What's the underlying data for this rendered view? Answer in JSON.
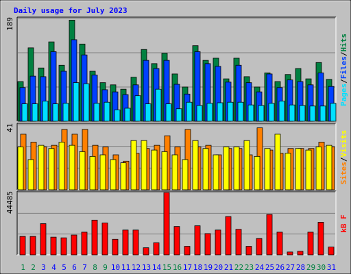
{
  "title": "Daily usage for July 2023",
  "categories": [
    "1",
    "2",
    "3",
    "4",
    "5",
    "6",
    "7",
    "8",
    "9",
    "10",
    "11",
    "12",
    "13",
    "14",
    "15",
    "16",
    "17",
    "18",
    "19",
    "20",
    "21",
    "22",
    "23",
    "24",
    "25",
    "26",
    "27",
    "28",
    "29",
    "30",
    "31"
  ],
  "category_colors": [
    "#008040",
    "#008040",
    "#0000ff",
    "#0000ff",
    "#0000ff",
    "#0000ff",
    "#0000ff",
    "#008040",
    "#008040",
    "#0000ff",
    "#0000ff",
    "#0000ff",
    "#0000ff",
    "#0000ff",
    "#008040",
    "#008040",
    "#0000ff",
    "#0000ff",
    "#0000ff",
    "#0000ff",
    "#0000ff",
    "#008040",
    "#008040",
    "#0000ff",
    "#0000ff",
    "#0000ff",
    "#0000ff",
    "#0000ff",
    "#008040",
    "#008040",
    "#0000ff"
  ],
  "chart_data": [
    {
      "type": "bar",
      "ylim": [
        0,
        189
      ],
      "yticks": [
        189
      ],
      "grid_divisions": 3,
      "separator": "/",
      "series": [
        {
          "name": "Hits",
          "color": "#008040",
          "values": [
            73,
            135,
            98,
            146,
            103,
            186,
            142,
            92,
            71,
            67,
            59,
            81,
            132,
            106,
            125,
            87,
            63,
            139,
            112,
            116,
            78,
            116,
            82,
            63,
            89,
            73,
            86,
            97,
            78,
            108,
            77
          ]
        },
        {
          "name": "Files",
          "color": "#0040ff",
          "values": [
            62,
            83,
            82,
            128,
            92,
            150,
            122,
            85,
            58,
            54,
            49,
            67,
            112,
            97,
            112,
            68,
            50,
            128,
            106,
            101,
            72,
            103,
            71,
            54,
            87,
            62,
            76,
            73,
            67,
            89,
            64
          ]
        },
        {
          "name": "Pages",
          "color": "#00e0ff",
          "values": [
            32,
            32,
            37,
            32,
            33,
            71,
            69,
            33,
            35,
            21,
            24,
            47,
            32,
            59,
            32,
            23,
            35,
            29,
            33,
            34,
            35,
            35,
            30,
            29,
            33,
            37,
            30,
            29,
            28,
            28,
            33
          ]
        }
      ]
    },
    {
      "type": "bar",
      "ylim": [
        0,
        41
      ],
      "yticks": [
        41
      ],
      "grid_divisions": 3,
      "separator": "/",
      "series": [
        {
          "name": "Sites",
          "color": "#ff8000",
          "values": [
            35,
            30,
            27,
            28,
            38,
            35,
            38,
            28,
            27,
            22,
            18,
            23,
            26,
            28,
            34,
            27,
            38,
            27,
            28,
            22,
            26,
            26,
            22,
            39,
            25,
            23,
            26,
            26,
            26,
            30,
            27
          ]
        },
        {
          "name": "Visits",
          "color": "#ffff00",
          "values": [
            27,
            19,
            28,
            26,
            30,
            28,
            24,
            21,
            22,
            19,
            17,
            31,
            31,
            25,
            24,
            22,
            19,
            31,
            26,
            22,
            27,
            27,
            31,
            21,
            26,
            35,
            23,
            26,
            25,
            27,
            28
          ]
        }
      ]
    },
    {
      "type": "bar",
      "ylim": [
        0,
        44485
      ],
      "yticks": [
        44485
      ],
      "grid_divisions": 3,
      "separator": "/",
      "series": [
        {
          "name": "kB F",
          "color": "#ff0000",
          "values": [
            13143,
            13143,
            22242,
            12637,
            12132,
            14154,
            16176,
            24770,
            22748,
            11110,
            17693,
            17693,
            5055,
            8594,
            44485,
            20220,
            6066,
            20726,
            15165,
            17693,
            27297,
            18198,
            6066,
            11626,
            28814,
            16176,
            2022,
            2528,
            16176,
            23253,
            5561
          ]
        }
      ]
    }
  ]
}
